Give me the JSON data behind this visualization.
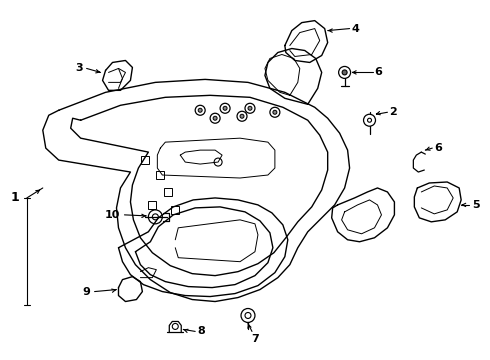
{
  "background_color": "#ffffff",
  "line_color": "#000000",
  "figsize": [
    4.9,
    3.6
  ],
  "dpi": 100,
  "lw_main": 1.0,
  "lw_thin": 0.7,
  "font_size": 8,
  "arrow_size": 6
}
